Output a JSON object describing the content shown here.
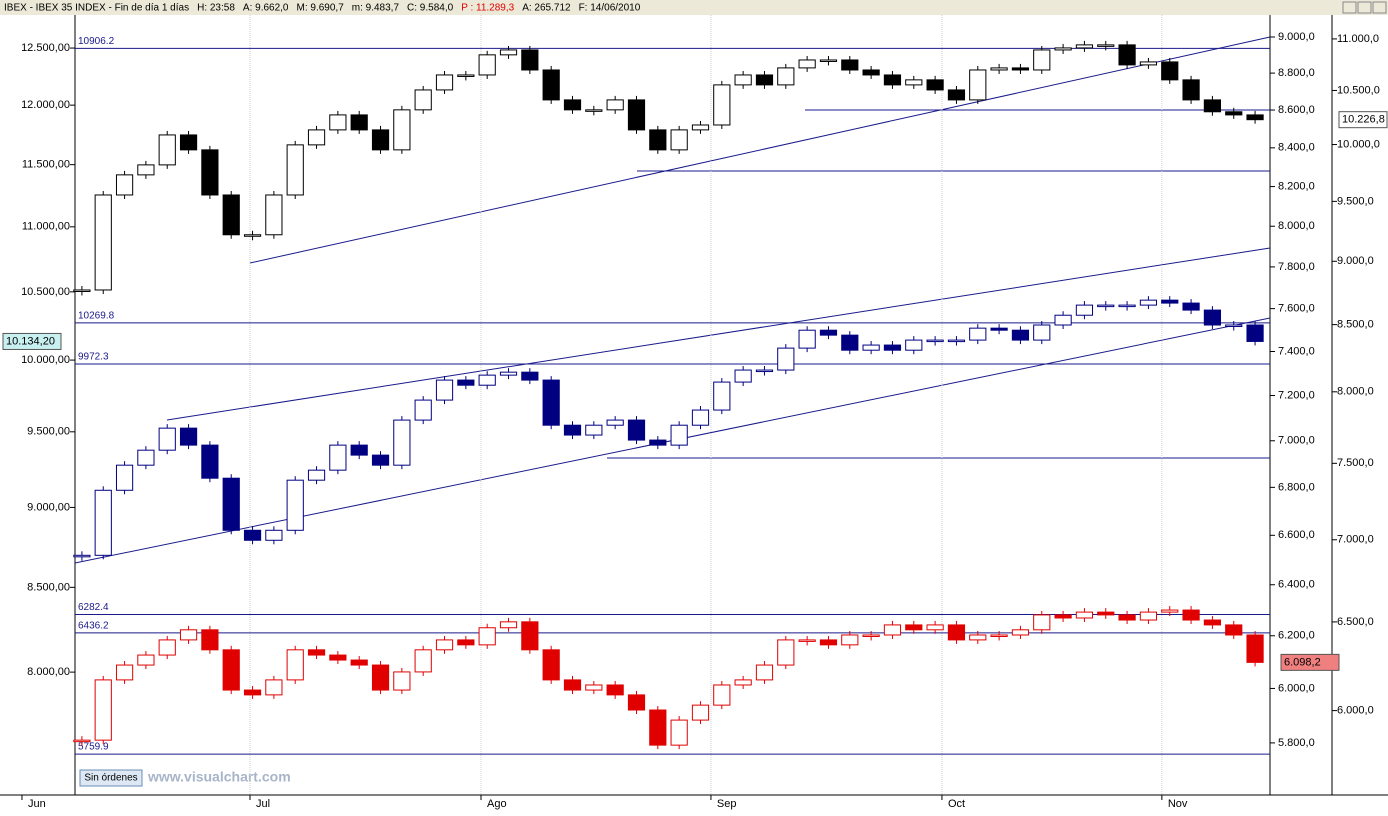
{
  "header": {
    "title": "IBEX - IBEX 35 INDEX - Fin de día 1 días",
    "fields": [
      "H: 23:58",
      "A: 9.662,0",
      "M: 9.690,7",
      "m: 9.483,7",
      "C: 9.584,0",
      "P : 11.289,3",
      "A: 265.712",
      "F: 14/06/2010"
    ]
  },
  "footer": {
    "button": "Sin órdenes",
    "watermark": "www.visualchart.com"
  },
  "chart_data": {
    "type": "candlestick",
    "log_scale": true,
    "grid": true,
    "xlim": [
      -3.84,
      55.7
    ],
    "xticks": [
      {
        "value": -2.81,
        "label": "Jun"
      },
      {
        "value": 7.88,
        "label": "Jul"
      },
      {
        "value": 18.71,
        "label": "Ago"
      },
      {
        "value": 29.49,
        "label": "Sep"
      },
      {
        "value": 40.32,
        "label": "Oct"
      },
      {
        "value": 50.63,
        "label": "Nov"
      }
    ],
    "axes": {
      "left": {
        "lim": [
          7327,
          12799
        ],
        "ticks": [
          {
            "value": 12500,
            "label": "12.500,00"
          },
          {
            "value": 12000,
            "label": "12.000,00"
          },
          {
            "value": 11500,
            "label": "11.500,00"
          },
          {
            "value": 11000,
            "label": "11.000,00"
          },
          {
            "value": 10500,
            "label": "10.500,00"
          },
          {
            "value": 10000,
            "label": "10.000,00"
          },
          {
            "value": 9500,
            "label": "9.500,00"
          },
          {
            "value": 9000,
            "label": "9.000,00"
          },
          {
            "value": 8500,
            "label": "8.500,00"
          },
          {
            "value": 8000,
            "label": "8.000,00"
          }
        ]
      },
      "inner": {
        "lim": [
          5615,
          9124
        ],
        "ticks": [
          {
            "value": 9000,
            "label": "9.000,0"
          },
          {
            "value": 8800,
            "label": "8.800,0"
          },
          {
            "value": 8600,
            "label": "8.600,0"
          },
          {
            "value": 8400,
            "label": "8.400,0"
          },
          {
            "value": 8200,
            "label": "8.200,0"
          },
          {
            "value": 8000,
            "label": "8.000,0"
          },
          {
            "value": 7800,
            "label": "7.800,0"
          },
          {
            "value": 7600,
            "label": "7.600,0"
          },
          {
            "value": 7400,
            "label": "7.400,0"
          },
          {
            "value": 7200,
            "label": "7.200,0"
          },
          {
            "value": 7000,
            "label": "7.000,0"
          },
          {
            "value": 6800,
            "label": "6.800,0"
          },
          {
            "value": 6600,
            "label": "6.600,0"
          },
          {
            "value": 6400,
            "label": "6.400,0"
          },
          {
            "value": 6200,
            "label": "6.200,0"
          },
          {
            "value": 6000,
            "label": "6.000,0"
          },
          {
            "value": 5800,
            "label": "5.800,0"
          }
        ]
      },
      "outer": {
        "lim": [
          5560,
          11240
        ],
        "ticks": [
          {
            "value": 11000,
            "label": "11.000,0"
          },
          {
            "value": 10500,
            "label": "10.500,0"
          },
          {
            "value": 10000,
            "label": "10.000,0"
          },
          {
            "value": 9500,
            "label": "9.500,0"
          },
          {
            "value": 9000,
            "label": "9.000,0"
          },
          {
            "value": 8500,
            "label": "8.500,0"
          },
          {
            "value": 8000,
            "label": "8.000,0"
          },
          {
            "value": 7500,
            "label": "7.500,0"
          },
          {
            "value": 7000,
            "label": "7.000,0"
          },
          {
            "value": 6500,
            "label": "6.500,0"
          },
          {
            "value": 6000,
            "label": "6.000,0"
          }
        ]
      }
    },
    "levels": [
      {
        "value": 10906.2,
        "axis": "outer"
      },
      {
        "value": 10269.8,
        "axis": "left"
      },
      {
        "value": 9972.3,
        "axis": "left"
      },
      {
        "value": 6282.4,
        "axis": "inner"
      },
      {
        "value": 6436.2,
        "axis": "outer"
      },
      {
        "value": 5759.9,
        "axis": "inner"
      }
    ],
    "series": [
      {
        "color": "#000000",
        "axis": "outer",
        "last_label": "10.226,8",
        "marker_color": "#ffffff",
        "values": [
          8770,
          9555,
          9730,
          9818,
          10087,
          9952,
          9555,
          9218,
          9218,
          9555,
          9997,
          10133,
          10271,
          10133,
          9952,
          10318,
          10505,
          10648,
          10648,
          10843,
          10891,
          10696,
          10411,
          10318,
          10318,
          10411,
          10133,
          9952,
          10133,
          10178,
          10553,
          10648,
          10553,
          10716,
          10793,
          10793,
          10696,
          10648,
          10553,
          10601,
          10505,
          10411,
          10696,
          10716,
          10696,
          10891,
          10911,
          10941,
          10941,
          10745,
          10774,
          10601,
          10411,
          10300,
          10271,
          10226.8
        ]
      },
      {
        "color": "#000080",
        "axis": "left",
        "last_label": "10.134,20",
        "marker_color": "#c8f0f0",
        "values": [
          8697,
          9111,
          9276,
          9376,
          9525,
          9410,
          9190,
          8854,
          8791,
          8854,
          9177,
          9243,
          9410,
          9343,
          9276,
          9580,
          9718,
          9858,
          9822,
          9893,
          9914,
          9858,
          9545,
          9478,
          9545,
          9580,
          9444,
          9410,
          9545,
          9649,
          9844,
          9929,
          9929,
          10086,
          10216,
          10180,
          10071,
          10108,
          10071,
          10144,
          10144,
          10144,
          10231,
          10216,
          10144,
          10254,
          10326,
          10401,
          10401,
          10401,
          10438,
          10416,
          10364,
          10254,
          10254,
          10134.2
        ]
      },
      {
        "color": "#e00000",
        "axis": "inner",
        "last_label": "6.098,2",
        "marker_color": "#f08080",
        "values": [
          5810,
          6032,
          6088,
          6126,
          6184,
          6223,
          6146,
          5994,
          5976,
          6032,
          6146,
          6126,
          6107,
          6088,
          5994,
          6062,
          6146,
          6184,
          6165,
          6231,
          6254,
          6146,
          6032,
          5994,
          6013,
          5976,
          5920,
          5792,
          5883,
          5938,
          6013,
          6032,
          6088,
          6184,
          6184,
          6165,
          6203,
          6203,
          6242,
          6223,
          6242,
          6184,
          6203,
          6203,
          6223,
          6281,
          6269,
          6292,
          6281,
          6261,
          6292,
          6300,
          6261,
          6242,
          6203,
          6098.2
        ]
      }
    ]
  }
}
